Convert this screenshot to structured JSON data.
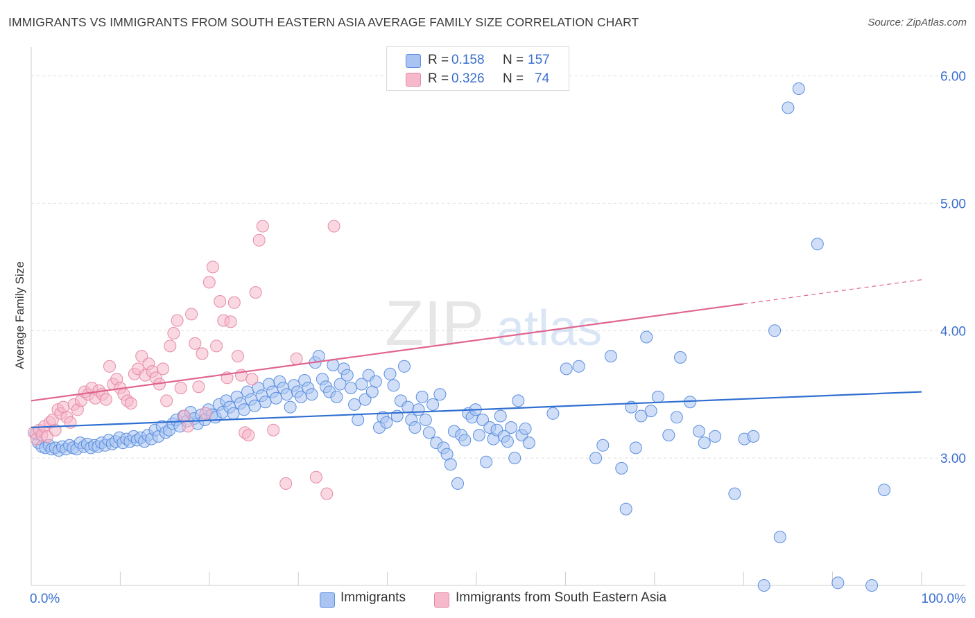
{
  "header": {
    "title": "IMMIGRANTS VS IMMIGRANTS FROM SOUTH EASTERN ASIA AVERAGE FAMILY SIZE CORRELATION CHART",
    "source": "Source: ZipAtlas.com"
  },
  "watermark": {
    "part1": "ZIP",
    "part2": "atlas"
  },
  "legend_top": {
    "rows": [
      {
        "r_label": "R =",
        "r_value": "0.158",
        "n_label": "N =",
        "n_value": "157"
      },
      {
        "r_label": "R =",
        "r_value": "0.326",
        "n_label": "N =",
        "n_value": "74"
      }
    ]
  },
  "legend_bottom": {
    "items": [
      {
        "label": "Immigrants"
      },
      {
        "label": "Immigrants from South Eastern Asia"
      }
    ]
  },
  "colors": {
    "blue_fill": "#a9c4f0",
    "blue_stroke": "#5b8ee0",
    "blue_line": "#2f6fd1",
    "pink_fill": "#f6b8cb",
    "pink_stroke": "#e58aa6",
    "pink_line": "#e0648f",
    "axis_text": "#3b6fd0",
    "grid": "#dddddd"
  },
  "chart_data": {
    "type": "scatter",
    "title": "IMMIGRANTS VS IMMIGRANTS FROM SOUTH EASTERN ASIA AVERAGE FAMILY SIZE CORRELATION CHART",
    "xlabel": "",
    "ylabel": "Average Family Size",
    "xlim": [
      0,
      100
    ],
    "ylim": [
      2.0,
      6.15
    ],
    "x_tick_labels": [
      "0.0%",
      "100.0%"
    ],
    "y_ticks": [
      3.0,
      4.0,
      5.0,
      6.0
    ],
    "y_tick_labels": [
      "3.00",
      "4.00",
      "5.00",
      "6.00"
    ],
    "grid": true,
    "legend_position": "top-center",
    "series": [
      {
        "name": "Immigrants",
        "color": "#5b8ee0",
        "trend": {
          "x": [
            0,
            100
          ],
          "y": [
            3.24,
            3.52
          ],
          "dashed_from": null
        },
        "points": [
          [
            0.5,
            3.19
          ],
          [
            0.8,
            3.12
          ],
          [
            1.2,
            3.09
          ],
          [
            1.6,
            3.08
          ],
          [
            2.0,
            3.1
          ],
          [
            2.3,
            3.07
          ],
          [
            2.7,
            3.08
          ],
          [
            3.1,
            3.06
          ],
          [
            3.5,
            3.09
          ],
          [
            3.9,
            3.07
          ],
          [
            4.3,
            3.1
          ],
          [
            4.7,
            3.08
          ],
          [
            5.1,
            3.07
          ],
          [
            5.5,
            3.12
          ],
          [
            5.9,
            3.09
          ],
          [
            6.3,
            3.11
          ],
          [
            6.7,
            3.08
          ],
          [
            7.1,
            3.1
          ],
          [
            7.5,
            3.09
          ],
          [
            7.9,
            3.12
          ],
          [
            8.3,
            3.1
          ],
          [
            8.7,
            3.14
          ],
          [
            9.1,
            3.11
          ],
          [
            9.5,
            3.13
          ],
          [
            9.9,
            3.16
          ],
          [
            10.3,
            3.12
          ],
          [
            10.7,
            3.15
          ],
          [
            11.1,
            3.13
          ],
          [
            11.5,
            3.17
          ],
          [
            11.9,
            3.14
          ],
          [
            12.3,
            3.16
          ],
          [
            12.7,
            3.13
          ],
          [
            13.1,
            3.18
          ],
          [
            13.5,
            3.15
          ],
          [
            13.9,
            3.22
          ],
          [
            14.3,
            3.17
          ],
          [
            14.7,
            3.25
          ],
          [
            15.1,
            3.2
          ],
          [
            15.5,
            3.22
          ],
          [
            15.9,
            3.27
          ],
          [
            16.3,
            3.3
          ],
          [
            16.7,
            3.25
          ],
          [
            17.1,
            3.33
          ],
          [
            17.5,
            3.29
          ],
          [
            17.9,
            3.36
          ],
          [
            18.3,
            3.31
          ],
          [
            18.7,
            3.27
          ],
          [
            19.1,
            3.34
          ],
          [
            19.5,
            3.3
          ],
          [
            19.9,
            3.38
          ],
          [
            20.3,
            3.34
          ],
          [
            20.7,
            3.32
          ],
          [
            21.1,
            3.42
          ],
          [
            21.5,
            3.36
          ],
          [
            21.9,
            3.45
          ],
          [
            22.3,
            3.4
          ],
          [
            22.7,
            3.35
          ],
          [
            23.1,
            3.48
          ],
          [
            23.5,
            3.43
          ],
          [
            23.9,
            3.38
          ],
          [
            24.3,
            3.52
          ],
          [
            24.7,
            3.46
          ],
          [
            25.1,
            3.41
          ],
          [
            25.5,
            3.55
          ],
          [
            25.9,
            3.49
          ],
          [
            26.3,
            3.44
          ],
          [
            26.7,
            3.58
          ],
          [
            27.1,
            3.52
          ],
          [
            27.5,
            3.47
          ],
          [
            27.9,
            3.6
          ],
          [
            28.3,
            3.55
          ],
          [
            28.7,
            3.5
          ],
          [
            29.1,
            3.4
          ],
          [
            29.5,
            3.57
          ],
          [
            29.9,
            3.52
          ],
          [
            30.3,
            3.48
          ],
          [
            30.7,
            3.61
          ],
          [
            31.1,
            3.55
          ],
          [
            31.5,
            3.5
          ],
          [
            31.9,
            3.75
          ],
          [
            32.3,
            3.8
          ],
          [
            32.7,
            3.62
          ],
          [
            33.1,
            3.56
          ],
          [
            33.5,
            3.52
          ],
          [
            33.9,
            3.73
          ],
          [
            34.3,
            3.48
          ],
          [
            34.7,
            3.58
          ],
          [
            35.1,
            3.7
          ],
          [
            35.5,
            3.65
          ],
          [
            35.9,
            3.55
          ],
          [
            36.3,
            3.42
          ],
          [
            36.7,
            3.3
          ],
          [
            37.1,
            3.58
          ],
          [
            37.5,
            3.46
          ],
          [
            37.9,
            3.65
          ],
          [
            38.3,
            3.52
          ],
          [
            38.7,
            3.6
          ],
          [
            39.1,
            3.24
          ],
          [
            39.5,
            3.32
          ],
          [
            39.9,
            3.28
          ],
          [
            40.3,
            3.66
          ],
          [
            40.7,
            3.57
          ],
          [
            41.1,
            3.33
          ],
          [
            41.5,
            3.45
          ],
          [
            41.9,
            3.72
          ],
          [
            42.3,
            3.4
          ],
          [
            42.7,
            3.3
          ],
          [
            43.1,
            3.24
          ],
          [
            43.5,
            3.38
          ],
          [
            43.9,
            3.48
          ],
          [
            44.3,
            3.3
          ],
          [
            44.7,
            3.2
          ],
          [
            45.1,
            3.42
          ],
          [
            45.5,
            3.12
          ],
          [
            45.9,
            3.5
          ],
          [
            46.3,
            3.08
          ],
          [
            46.7,
            3.03
          ],
          [
            47.1,
            2.95
          ],
          [
            47.5,
            3.21
          ],
          [
            47.9,
            2.8
          ],
          [
            48.3,
            3.18
          ],
          [
            48.7,
            3.14
          ],
          [
            49.1,
            3.35
          ],
          [
            49.5,
            3.32
          ],
          [
            49.9,
            3.38
          ],
          [
            50.3,
            3.18
          ],
          [
            50.7,
            3.3
          ],
          [
            51.1,
            2.97
          ],
          [
            51.5,
            3.24
          ],
          [
            51.9,
            3.15
          ],
          [
            52.3,
            3.22
          ],
          [
            52.7,
            3.33
          ],
          [
            53.1,
            3.17
          ],
          [
            53.5,
            3.13
          ],
          [
            53.9,
            3.24
          ],
          [
            54.3,
            3.0
          ],
          [
            54.7,
            3.45
          ],
          [
            55.1,
            3.18
          ],
          [
            55.5,
            3.23
          ],
          [
            55.9,
            3.12
          ],
          [
            58.6,
            3.35
          ],
          [
            60.1,
            3.7
          ],
          [
            61.5,
            3.72
          ],
          [
            63.4,
            3.0
          ],
          [
            64.2,
            3.1
          ],
          [
            65.1,
            3.8
          ],
          [
            66.3,
            2.92
          ],
          [
            66.8,
            2.6
          ],
          [
            67.4,
            3.4
          ],
          [
            67.9,
            3.08
          ],
          [
            68.5,
            3.33
          ],
          [
            69.1,
            3.95
          ],
          [
            69.6,
            3.37
          ],
          [
            70.4,
            3.48
          ],
          [
            71.6,
            3.18
          ],
          [
            72.5,
            3.32
          ],
          [
            72.9,
            3.79
          ],
          [
            74.0,
            3.44
          ],
          [
            75.0,
            3.21
          ],
          [
            75.6,
            3.12
          ],
          [
            76.8,
            3.17
          ],
          [
            79.0,
            2.72
          ],
          [
            80.1,
            3.15
          ],
          [
            81.1,
            3.17
          ],
          [
            82.3,
            2.0
          ],
          [
            83.5,
            4.0
          ],
          [
            84.1,
            2.38
          ],
          [
            85.0,
            5.75
          ],
          [
            86.2,
            5.9
          ],
          [
            88.3,
            4.68
          ],
          [
            90.6,
            2.02
          ],
          [
            94.4,
            2.0
          ],
          [
            95.8,
            2.75
          ]
        ]
      },
      {
        "name": "Immigrants from South Eastern Asia",
        "color": "#e58aa6",
        "trend": {
          "x": [
            0,
            100
          ],
          "y": [
            3.45,
            4.4
          ],
          "dashed_from": 80
        },
        "points": [
          [
            0.3,
            3.2
          ],
          [
            0.6,
            3.15
          ],
          [
            0.9,
            3.22
          ],
          [
            1.2,
            3.18
          ],
          [
            1.5,
            3.25
          ],
          [
            1.8,
            3.17
          ],
          [
            2.1,
            3.28
          ],
          [
            2.4,
            3.3
          ],
          [
            2.7,
            3.22
          ],
          [
            3.0,
            3.38
          ],
          [
            3.3,
            3.35
          ],
          [
            3.6,
            3.4
          ],
          [
            4.0,
            3.32
          ],
          [
            4.4,
            3.28
          ],
          [
            4.8,
            3.42
          ],
          [
            5.2,
            3.38
          ],
          [
            5.6,
            3.45
          ],
          [
            6.0,
            3.52
          ],
          [
            6.4,
            3.5
          ],
          [
            6.8,
            3.55
          ],
          [
            7.2,
            3.47
          ],
          [
            7.6,
            3.53
          ],
          [
            8.0,
            3.5
          ],
          [
            8.4,
            3.46
          ],
          [
            8.8,
            3.72
          ],
          [
            9.2,
            3.58
          ],
          [
            9.6,
            3.62
          ],
          [
            10.0,
            3.55
          ],
          [
            10.4,
            3.5
          ],
          [
            10.8,
            3.45
          ],
          [
            11.2,
            3.43
          ],
          [
            11.6,
            3.66
          ],
          [
            12.0,
            3.7
          ],
          [
            12.4,
            3.8
          ],
          [
            12.8,
            3.65
          ],
          [
            13.2,
            3.74
          ],
          [
            13.6,
            3.68
          ],
          [
            14.0,
            3.63
          ],
          [
            14.4,
            3.58
          ],
          [
            14.8,
            3.7
          ],
          [
            15.2,
            3.45
          ],
          [
            15.6,
            3.88
          ],
          [
            16.0,
            3.98
          ],
          [
            16.4,
            4.08
          ],
          [
            16.8,
            3.55
          ],
          [
            17.2,
            3.33
          ],
          [
            17.6,
            3.25
          ],
          [
            18.0,
            4.13
          ],
          [
            18.4,
            3.9
          ],
          [
            18.8,
            3.56
          ],
          [
            19.2,
            3.82
          ],
          [
            19.6,
            3.35
          ],
          [
            20.0,
            4.38
          ],
          [
            20.4,
            4.5
          ],
          [
            20.8,
            3.88
          ],
          [
            21.2,
            4.23
          ],
          [
            21.6,
            4.08
          ],
          [
            22.0,
            3.63
          ],
          [
            22.4,
            4.07
          ],
          [
            22.8,
            4.22
          ],
          [
            23.2,
            3.8
          ],
          [
            23.6,
            3.65
          ],
          [
            24.0,
            3.2
          ],
          [
            24.4,
            3.18
          ],
          [
            24.8,
            3.62
          ],
          [
            25.2,
            4.3
          ],
          [
            25.6,
            4.71
          ],
          [
            26.0,
            4.82
          ],
          [
            27.2,
            3.22
          ],
          [
            28.6,
            2.8
          ],
          [
            29.8,
            3.78
          ],
          [
            32.0,
            2.85
          ],
          [
            33.2,
            2.72
          ],
          [
            34.0,
            4.82
          ]
        ]
      }
    ]
  }
}
